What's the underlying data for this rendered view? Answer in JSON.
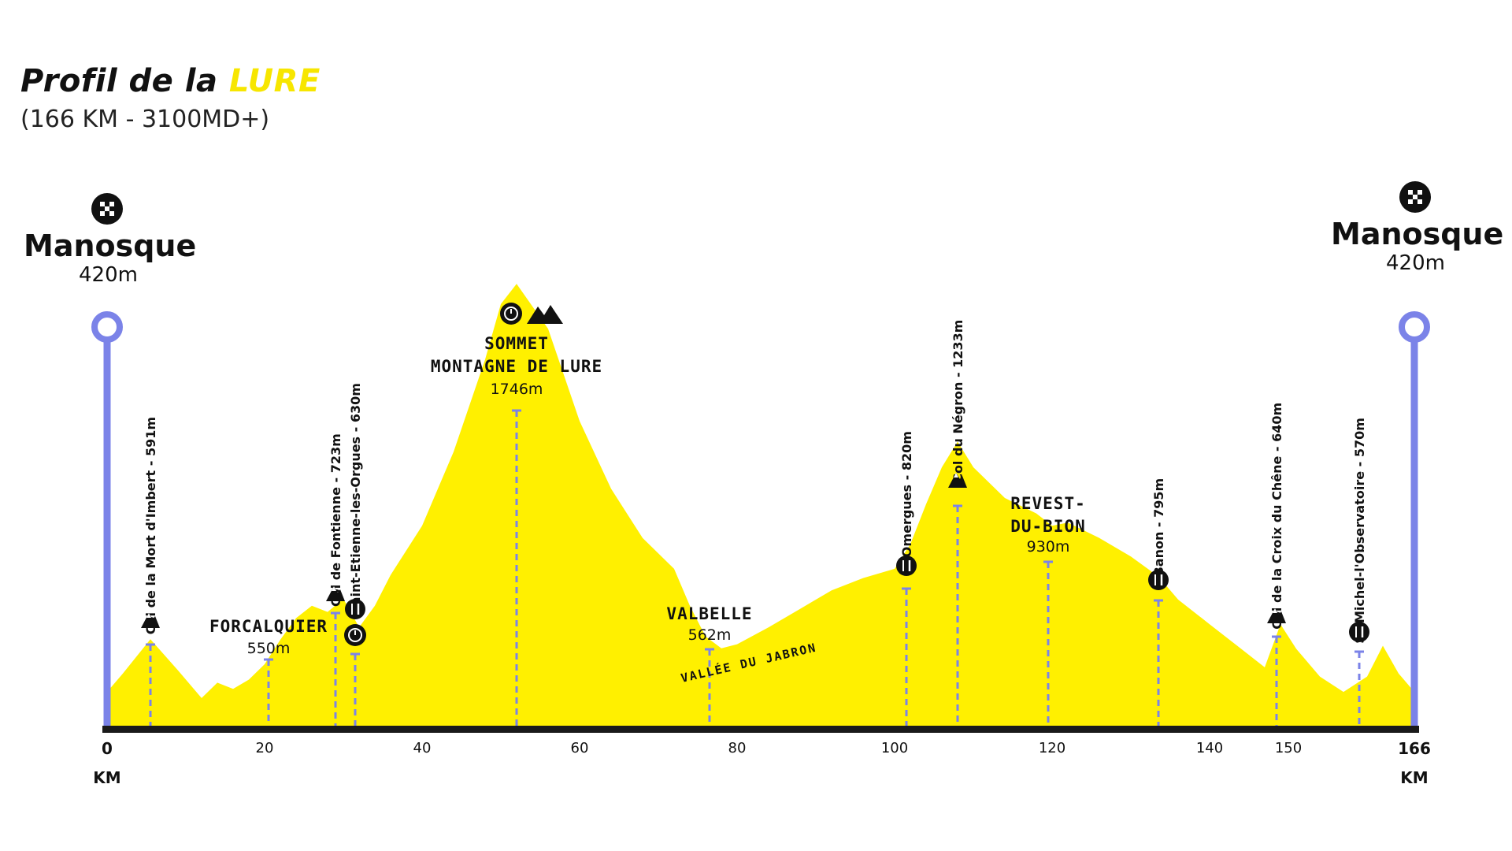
{
  "title": {
    "prefix": "Profil de la ",
    "accent": "LURE",
    "subtitle": "(166 KM - 3100MD+)"
  },
  "start": {
    "name": "Manosque",
    "altitude": "420m",
    "km_label": "0",
    "unit": "KM"
  },
  "finish": {
    "name": "Manosque",
    "altitude": "420m",
    "km_label": "166",
    "unit": "KM"
  },
  "colors": {
    "profile_fill": "#fff000",
    "marker": "#7b83e8",
    "baseline": "#1a1a1a",
    "title_accent": "#f7e600"
  },
  "chart_data": {
    "type": "area",
    "title": "Profil de la LURE",
    "subtitle": "(166 KM - 3100MD+)",
    "xlabel": "KM",
    "ylabel": "",
    "xlim": [
      0,
      166
    ],
    "x_ticks": [
      "20",
      "40",
      "60",
      "80",
      "100",
      "120",
      "140",
      "150"
    ],
    "x_tick_values": [
      20,
      40,
      60,
      80,
      100,
      120,
      140,
      150
    ],
    "ylim": [
      300,
      1900
    ],
    "series": [
      {
        "name": "",
        "x": [
          0,
          2,
          5.5,
          9,
          12,
          14,
          16,
          18,
          20,
          22,
          24,
          26,
          28,
          30,
          32,
          34,
          36,
          40,
          44,
          48,
          50,
          52,
          56,
          60,
          64,
          68,
          72,
          74,
          76,
          78,
          80,
          84,
          88,
          92,
          96,
          100,
          102,
          104,
          106,
          108,
          110,
          114,
          118,
          120,
          122,
          126,
          130,
          133.5,
          136,
          140,
          144,
          147,
          149,
          151,
          154,
          157,
          160,
          162,
          164,
          166
        ],
        "y": [
          420,
          480,
          591,
          490,
          400,
          450,
          430,
          460,
          510,
          590,
          660,
          700,
          680,
          723,
          630,
          700,
          800,
          960,
          1200,
          1500,
          1680,
          1746,
          1600,
          1300,
          1080,
          920,
          820,
          700,
          600,
          562,
          575,
          630,
          690,
          750,
          790,
          820,
          900,
          1030,
          1150,
          1233,
          1150,
          1050,
          1000,
          960,
          970,
          920,
          860,
          795,
          720,
          640,
          560,
          500,
          640,
          560,
          470,
          420,
          470,
          570,
          480,
          420
        ]
      }
    ],
    "waypoints": [
      {
        "name": "Col de la Mort d'Imbert",
        "altitude": "591m",
        "km": 5.5,
        "icons": [
          "mountain-icon"
        ]
      },
      {
        "name": "FORCALQUIER",
        "altitude": "550m",
        "km": 20.5,
        "icons": []
      },
      {
        "name": "Col de Fontienne",
        "altitude": "723m",
        "km": 29,
        "icons": [
          "mountain-icon"
        ]
      },
      {
        "name": "Saint-Etienne-les-Orgues",
        "altitude": "630m",
        "km": 31.5,
        "icons": [
          "food-icon",
          "timer-icon"
        ]
      },
      {
        "name_lines": [
          "SOMMET",
          "MONTAGNE DE LURE"
        ],
        "altitude": "1746m",
        "km": 52,
        "icons": [
          "timer-icon",
          "mountains-icon"
        ]
      },
      {
        "name": "VALBELLE",
        "altitude": "562m",
        "km": 76.5,
        "icons": []
      },
      {
        "name": "Omergues",
        "altitude": "820m",
        "km": 101.5,
        "icons": [
          "food-icon"
        ]
      },
      {
        "name": "Col du Négron",
        "altitude": "1233m",
        "km": 108,
        "icons": [
          "mountain-icon"
        ]
      },
      {
        "name_lines": [
          "REVEST-",
          "DU-BION"
        ],
        "altitude": "930m",
        "km": 119.5,
        "icons": []
      },
      {
        "name": "Banon",
        "altitude": "795m",
        "km": 133.5,
        "icons": [
          "food-icon"
        ]
      },
      {
        "name": "Col de la Croix du Chêne",
        "altitude": "640m",
        "km": 148.5,
        "icons": [
          "mountain-icon"
        ]
      },
      {
        "name": "St-Michel-l'Observatoire",
        "altitude": "570m",
        "km": 159,
        "icons": [
          "food-icon"
        ]
      }
    ],
    "annotations": [
      {
        "text": "VALLÉE DU JABRON",
        "km": 88
      }
    ]
  }
}
